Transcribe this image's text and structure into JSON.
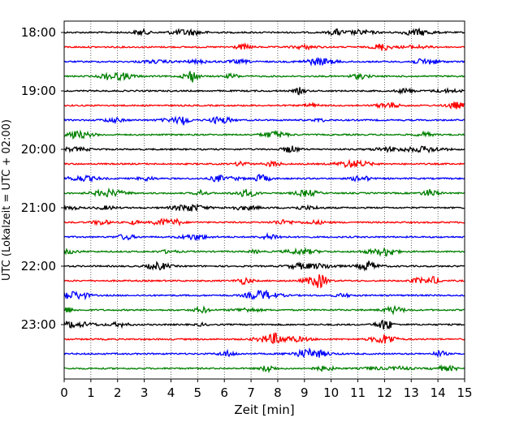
{
  "chart_data": {
    "type": "line",
    "subtype": "seismogram-helicorder",
    "xlabel": "Zeit  [min]",
    "ylabel": "UTC (Lokalzeit = UTC + 02:00)",
    "xlim": [
      0,
      15
    ],
    "x_ticks": [
      "0",
      "1",
      "2",
      "3",
      "4",
      "5",
      "6",
      "7",
      "8",
      "9",
      "10",
      "11",
      "12",
      "13",
      "14",
      "15"
    ],
    "y_tick_labels": [
      "18:00",
      "19:00",
      "20:00",
      "21:00",
      "22:00",
      "23:00"
    ],
    "row_minutes": 15,
    "row_start_times": [
      "18:00",
      "18:15",
      "18:30",
      "18:45",
      "19:00",
      "19:15",
      "19:30",
      "19:45",
      "20:00",
      "20:15",
      "20:30",
      "20:45",
      "21:00",
      "21:15",
      "21:30",
      "21:45",
      "22:00",
      "22:15",
      "22:30",
      "22:45",
      "23:00",
      "23:15",
      "23:30",
      "23:45"
    ],
    "row_colors": [
      "#000000",
      "#ff0000",
      "#0000ff",
      "#008000"
    ],
    "vertical_grid": "dotted",
    "horizontal_grid": false
  }
}
